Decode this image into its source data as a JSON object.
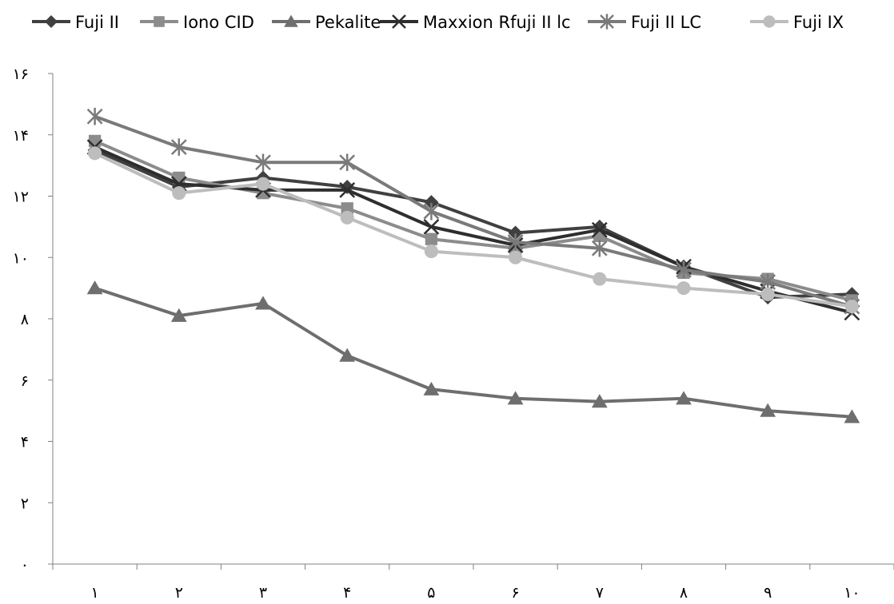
{
  "chart_data": {
    "type": "line",
    "categories": [
      "١",
      "٢",
      "٣",
      "۴",
      "۵",
      "۶",
      "٧",
      "٨",
      "٩",
      "١٠"
    ],
    "y_ticks": [
      "٠",
      "٢",
      "۴",
      "۶",
      "٨",
      "١٠",
      "١٢",
      "١۴",
      "١۶"
    ],
    "ylim": [
      0,
      16
    ],
    "y_tick_step": 2,
    "grid": false,
    "legend_position": "top",
    "series": [
      {
        "name": "Fuji II",
        "marker": "diamond",
        "color": "#404040",
        "values": [
          13.5,
          12.3,
          12.6,
          12.3,
          11.8,
          10.8,
          11.0,
          9.7,
          8.7,
          8.8
        ]
      },
      {
        "name": "Iono CID",
        "marker": "square",
        "color": "#8c8c8c",
        "values": [
          13.8,
          12.6,
          12.1,
          11.6,
          10.6,
          10.3,
          10.7,
          9.5,
          9.3,
          8.6
        ]
      },
      {
        "name": "Pekalite",
        "marker": "triangle",
        "color": "#6e6e6e",
        "values": [
          9.0,
          8.1,
          8.5,
          6.8,
          5.7,
          5.4,
          5.3,
          5.4,
          5.0,
          4.8
        ]
      },
      {
        "name": "Maxxion Rfuji II lc",
        "marker": "x",
        "color": "#2e2e2e",
        "values": [
          13.6,
          12.4,
          12.2,
          12.2,
          11.0,
          10.4,
          10.9,
          9.7,
          8.9,
          8.2
        ]
      },
      {
        "name": "Fuji II LC",
        "marker": "asterisk",
        "color": "#7a7a7a",
        "values": [
          14.6,
          13.6,
          13.1,
          13.1,
          11.5,
          10.5,
          10.3,
          9.6,
          9.2,
          8.4
        ]
      },
      {
        "name": "Fuji IX",
        "marker": "circle",
        "color": "#bdbdbd",
        "values": [
          13.4,
          12.1,
          12.4,
          11.3,
          10.2,
          10.0,
          9.3,
          9.0,
          8.8,
          8.4
        ]
      }
    ]
  }
}
